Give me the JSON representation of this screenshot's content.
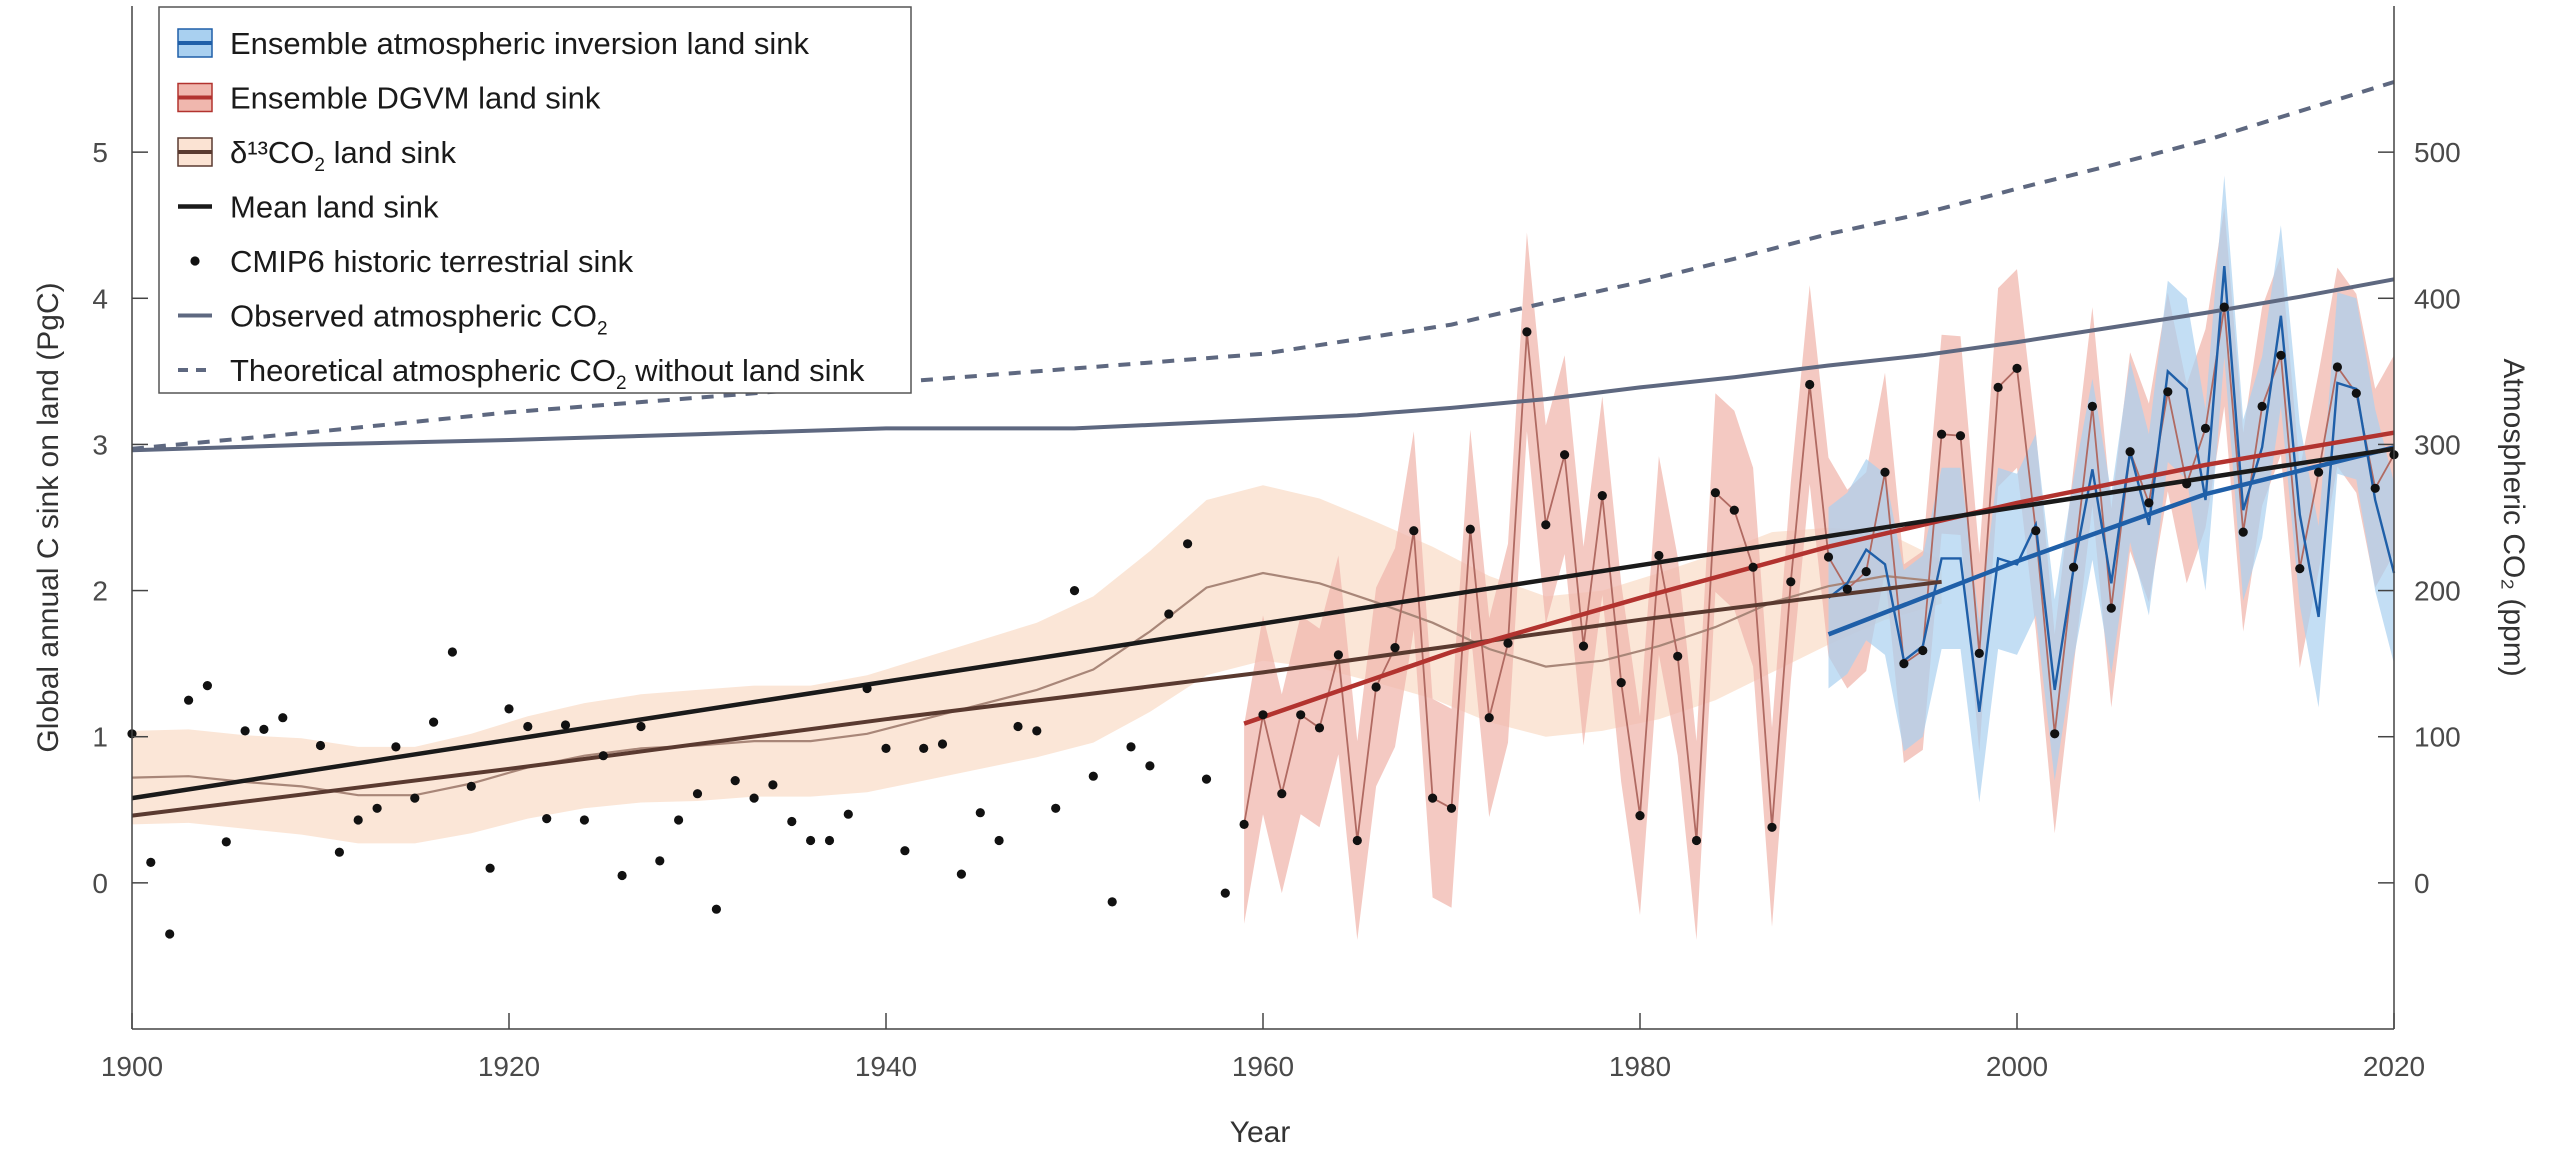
{
  "chart_data": {
    "type": "line",
    "xlabel": "Year",
    "ylabel_left": "Global annual C sink on land (PgC)",
    "ylabel_right": "Atmospheric CO₂ (ppm)",
    "xlim": [
      1900,
      2020
    ],
    "ylim_left": [
      -1,
      6
    ],
    "ylim_right": [
      -100,
      600
    ],
    "x_ticks": [
      1900,
      1920,
      1940,
      1960,
      1980,
      2000,
      2020
    ],
    "y_ticks_left": [
      0,
      1,
      2,
      3,
      4,
      5
    ],
    "y_ticks_right": [
      0,
      100,
      200,
      300,
      400,
      500
    ],
    "grid": false,
    "legend_position": "top-left",
    "legend": [
      {
        "label_main": "Ensemble atmospheric inversion land sink",
        "label_sub": "",
        "label_suffix": "",
        "style": "band-blue"
      },
      {
        "label_main": "Ensemble DGVM land sink",
        "label_sub": "",
        "label_suffix": "",
        "style": "band-red"
      },
      {
        "label_main": "δ¹³CO",
        "label_sub": "2",
        "label_suffix": " land sink",
        "style": "band-brown"
      },
      {
        "label_main": "Mean land sink",
        "label_sub": "",
        "label_suffix": "",
        "style": "line-black"
      },
      {
        "label_main": "CMIP6 historic terrestrial sink",
        "label_sub": "",
        "label_suffix": "",
        "style": "dot"
      },
      {
        "label_main": "Observed atmospheric CO",
        "label_sub": "2",
        "label_suffix": "",
        "style": "line-slate"
      },
      {
        "label_main": "Theoretical atmospheric CO",
        "label_sub": "2",
        "label_suffix": " without land sink",
        "style": "dashed-slate"
      }
    ],
    "colors": {
      "inversion": "#1f5fa8",
      "inversion_band": "#a9d0f0",
      "dgvm": "#b2332f",
      "dgvm_band": "#f0b7ae",
      "d13c_line": "#a88678",
      "d13c_band": "#fbe3d3",
      "d13c_trend": "#5a3a30",
      "mean": "#1a1a1a",
      "cmip6": "#111111",
      "co2": "#5e6880"
    },
    "series": {
      "cmip6_points": [
        [
          1900,
          1.02
        ],
        [
          1901,
          0.14
        ],
        [
          1902,
          -0.35
        ],
        [
          1903,
          1.25
        ],
        [
          1904,
          1.35
        ],
        [
          1905,
          0.28
        ],
        [
          1906,
          1.04
        ],
        [
          1907,
          1.05
        ],
        [
          1908,
          1.13
        ],
        [
          1910,
          0.94
        ],
        [
          1911,
          0.21
        ],
        [
          1912,
          0.43
        ],
        [
          1913,
          0.51
        ],
        [
          1914,
          0.93
        ],
        [
          1915,
          0.58
        ],
        [
          1916,
          1.1
        ],
        [
          1917,
          1.58
        ],
        [
          1918,
          0.66
        ],
        [
          1919,
          0.1
        ],
        [
          1920,
          1.19
        ],
        [
          1921,
          1.07
        ],
        [
          1922,
          0.44
        ],
        [
          1923,
          1.08
        ],
        [
          1924,
          0.43
        ],
        [
          1925,
          0.87
        ],
        [
          1926,
          0.05
        ],
        [
          1927,
          1.07
        ],
        [
          1928,
          0.15
        ],
        [
          1929,
          0.43
        ],
        [
          1930,
          0.61
        ],
        [
          1931,
          -0.18
        ],
        [
          1932,
          0.7
        ],
        [
          1933,
          0.58
        ],
        [
          1934,
          0.67
        ],
        [
          1935,
          0.42
        ],
        [
          1936,
          0.29
        ],
        [
          1937,
          0.29
        ],
        [
          1938,
          0.47
        ],
        [
          1939,
          1.33
        ],
        [
          1940,
          0.92
        ],
        [
          1941,
          0.22
        ],
        [
          1942,
          0.92
        ],
        [
          1943,
          0.95
        ],
        [
          1944,
          0.06
        ],
        [
          1945,
          0.48
        ],
        [
          1946,
          0.29
        ],
        [
          1947,
          1.07
        ],
        [
          1948,
          1.04
        ],
        [
          1949,
          0.51
        ],
        [
          1950,
          2.0
        ],
        [
          1951,
          0.73
        ],
        [
          1952,
          -0.13
        ],
        [
          1953,
          0.93
        ],
        [
          1954,
          0.8
        ],
        [
          1955,
          1.84
        ],
        [
          1956,
          2.32
        ],
        [
          1957,
          0.71
        ],
        [
          1958,
          -0.07
        ],
        [
          1959,
          0.4
        ],
        [
          1960,
          1.15
        ],
        [
          1961,
          0.61
        ],
        [
          1962,
          1.15
        ],
        [
          1963,
          1.06
        ],
        [
          1964,
          1.56
        ],
        [
          1965,
          0.29
        ],
        [
          1966,
          1.34
        ],
        [
          1967,
          1.61
        ],
        [
          1968,
          2.41
        ],
        [
          1969,
          0.58
        ],
        [
          1970,
          0.51
        ],
        [
          1971,
          2.42
        ],
        [
          1972,
          1.13
        ],
        [
          1973,
          1.64
        ],
        [
          1974,
          3.77
        ],
        [
          1975,
          2.45
        ],
        [
          1976,
          2.93
        ],
        [
          1977,
          1.62
        ],
        [
          1978,
          2.65
        ],
        [
          1979,
          1.37
        ],
        [
          1980,
          0.46
        ],
        [
          1981,
          2.24
        ],
        [
          1982,
          1.55
        ],
        [
          1983,
          0.29
        ],
        [
          1984,
          2.67
        ],
        [
          1985,
          2.55
        ],
        [
          1986,
          2.16
        ],
        [
          1987,
          0.38
        ],
        [
          1988,
          2.06
        ],
        [
          1989,
          3.41
        ],
        [
          1990,
          2.23
        ],
        [
          1991,
          2.01
        ],
        [
          1992,
          2.13
        ],
        [
          1993,
          2.81
        ],
        [
          1994,
          1.5
        ],
        [
          1995,
          1.59
        ],
        [
          1996,
          3.07
        ],
        [
          1997,
          3.06
        ],
        [
          1998,
          1.57
        ],
        [
          1999,
          3.39
        ],
        [
          2000,
          3.52
        ],
        [
          2001,
          2.41
        ],
        [
          2002,
          1.02
        ],
        [
          2003,
          2.16
        ],
        [
          2004,
          3.26
        ],
        [
          2005,
          1.88
        ],
        [
          2006,
          2.95
        ],
        [
          2007,
          2.6
        ],
        [
          2008,
          3.36
        ],
        [
          2009,
          2.73
        ],
        [
          2010,
          3.11
        ],
        [
          2011,
          3.94
        ],
        [
          2012,
          2.4
        ],
        [
          2013,
          3.26
        ],
        [
          2014,
          3.61
        ],
        [
          2015,
          2.15
        ],
        [
          2016,
          2.81
        ],
        [
          2017,
          3.53
        ],
        [
          2018,
          3.35
        ],
        [
          2019,
          2.7
        ],
        [
          2020,
          2.93
        ]
      ],
      "dgvm_years": [
        1959,
        1960,
        1961,
        1962,
        1963,
        1964,
        1965,
        1966,
        1967,
        1968,
        1969,
        1970,
        1971,
        1972,
        1973,
        1974,
        1975,
        1976,
        1977,
        1978,
        1979,
        1980,
        1981,
        1982,
        1983,
        1984,
        1985,
        1986,
        1987,
        1988,
        1989,
        1990,
        1991,
        1992,
        1993,
        1994,
        1995,
        1996,
        1997,
        1998,
        1999,
        2000,
        2001,
        2002,
        2003,
        2004,
        2005,
        2006,
        2007,
        2008,
        2009,
        2010,
        2011,
        2012,
        2013,
        2014,
        2015,
        2016,
        2017,
        2018,
        2019,
        2020
      ],
      "dgvm_mean": [
        0.4,
        1.15,
        0.61,
        1.15,
        1.06,
        1.56,
        0.29,
        1.34,
        1.61,
        2.41,
        0.58,
        0.51,
        2.42,
        1.13,
        1.64,
        3.77,
        2.45,
        2.93,
        1.62,
        2.65,
        1.37,
        0.46,
        2.24,
        1.55,
        0.29,
        2.67,
        2.55,
        2.16,
        0.38,
        2.06,
        3.41,
        2.23,
        2.01,
        2.13,
        2.81,
        1.5,
        1.59,
        3.07,
        3.06,
        1.57,
        3.39,
        3.52,
        2.41,
        1.02,
        2.16,
        3.26,
        1.88,
        2.95,
        2.6,
        3.36,
        2.73,
        3.11,
        3.94,
        2.4,
        3.26,
        3.61,
        2.15,
        2.81,
        3.53,
        3.35,
        2.7,
        2.93
      ],
      "dgvm_band_halfwidth": 0.68,
      "inversion_years": [
        1990,
        1991,
        1992,
        1993,
        1994,
        1995,
        1996,
        1997,
        1998,
        1999,
        2000,
        2001,
        2002,
        2003,
        2004,
        2005,
        2006,
        2007,
        2008,
        2009,
        2010,
        2011,
        2012,
        2013,
        2014,
        2015,
        2016,
        2017,
        2018,
        2019,
        2020
      ],
      "inversion_mean": [
        1.95,
        2.05,
        2.28,
        2.18,
        1.52,
        1.62,
        2.22,
        2.22,
        1.17,
        2.22,
        2.18,
        2.45,
        1.32,
        2.15,
        2.83,
        2.05,
        2.95,
        2.45,
        3.5,
        3.38,
        2.62,
        4.22,
        2.55,
        2.98,
        3.88,
        2.52,
        1.82,
        3.42,
        3.38,
        2.62,
        2.12
      ],
      "inversion_band_halfwidth": 0.62,
      "d13c_years": [
        1900,
        1903,
        1906,
        1909,
        1912,
        1915,
        1918,
        1921,
        1924,
        1927,
        1930,
        1933,
        1936,
        1939,
        1942,
        1945,
        1948,
        1951,
        1954,
        1957,
        1960,
        1963,
        1966,
        1969,
        1972,
        1975,
        1978,
        1981,
        1984,
        1987,
        1990,
        1993,
        1996
      ],
      "d13c_line": [
        0.72,
        0.73,
        0.69,
        0.66,
        0.6,
        0.6,
        0.68,
        0.79,
        0.87,
        0.92,
        0.94,
        0.97,
        0.97,
        1.02,
        1.12,
        1.22,
        1.32,
        1.46,
        1.72,
        2.02,
        2.12,
        2.05,
        1.92,
        1.78,
        1.6,
        1.48,
        1.52,
        1.62,
        1.75,
        1.92,
        2.03,
        2.1,
        2.06
      ],
      "d13c_band_halfwidth": [
        0.32,
        0.32,
        0.32,
        0.33,
        0.33,
        0.33,
        0.34,
        0.35,
        0.36,
        0.37,
        0.38,
        0.38,
        0.38,
        0.4,
        0.42,
        0.44,
        0.46,
        0.5,
        0.55,
        0.6,
        0.6,
        0.58,
        0.55,
        0.52,
        0.5,
        0.48,
        0.48,
        0.5,
        0.5,
        0.48,
        0.4,
        0.3,
        0.15
      ],
      "mean_trend": [
        [
          1900,
          0.58
        ],
        [
          2020,
          2.97
        ]
      ],
      "d13c_trend": [
        [
          1900,
          0.46
        ],
        [
          1920,
          0.78
        ],
        [
          1940,
          1.12
        ],
        [
          1960,
          1.44
        ],
        [
          1980,
          1.8
        ],
        [
          1996,
          2.06
        ]
      ],
      "dgvm_trend": [
        [
          1959,
          1.09
        ],
        [
          1970,
          1.58
        ],
        [
          1980,
          1.95
        ],
        [
          1990,
          2.3
        ],
        [
          2000,
          2.6
        ],
        [
          2010,
          2.86
        ],
        [
          2020,
          3.08
        ]
      ],
      "inversion_trend": [
        [
          1990,
          1.7
        ],
        [
          2000,
          2.2
        ],
        [
          2010,
          2.66
        ],
        [
          2020,
          2.98
        ]
      ],
      "co2_observed": [
        [
          1900,
          296
        ],
        [
          1910,
          300
        ],
        [
          1920,
          303
        ],
        [
          1930,
          307
        ],
        [
          1940,
          311
        ],
        [
          1950,
          311
        ],
        [
          1955,
          314
        ],
        [
          1960,
          317
        ],
        [
          1965,
          320
        ],
        [
          1970,
          325
        ],
        [
          1975,
          331
        ],
        [
          1980,
          339
        ],
        [
          1985,
          346
        ],
        [
          1990,
          354
        ],
        [
          1995,
          361
        ],
        [
          2000,
          370
        ],
        [
          2005,
          380
        ],
        [
          2010,
          390
        ],
        [
          2015,
          401
        ],
        [
          2020,
          413
        ]
      ],
      "co2_theoretical": [
        [
          1900,
          297
        ],
        [
          1910,
          309
        ],
        [
          1920,
          322
        ],
        [
          1930,
          332
        ],
        [
          1940,
          342
        ],
        [
          1950,
          352
        ],
        [
          1960,
          362
        ],
        [
          1965,
          372
        ],
        [
          1970,
          382
        ],
        [
          1975,
          397
        ],
        [
          1980,
          411
        ],
        [
          1985,
          427
        ],
        [
          1990,
          444
        ],
        [
          1995,
          458
        ],
        [
          2000,
          475
        ],
        [
          2005,
          491
        ],
        [
          2010,
          508
        ],
        [
          2015,
          528
        ],
        [
          2020,
          548
        ]
      ]
    }
  }
}
